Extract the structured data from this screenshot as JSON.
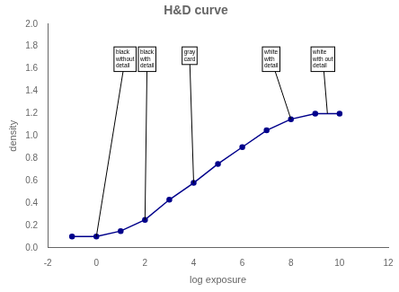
{
  "chart_data": {
    "type": "line",
    "title": "H&D curve",
    "xlabel": "log exposure",
    "ylabel": "density",
    "x": [
      -1,
      0,
      1,
      2,
      3,
      4,
      5,
      6,
      7,
      8,
      9,
      10
    ],
    "values": [
      0.1,
      0.1,
      0.15,
      0.25,
      0.43,
      0.58,
      0.75,
      0.9,
      1.05,
      1.15,
      1.2,
      1.2
    ],
    "color": "#00008B",
    "marker": "circle",
    "xlim": [
      -2,
      12
    ],
    "ylim": [
      0,
      2
    ],
    "xticks": [
      -2,
      0,
      2,
      4,
      6,
      8,
      10,
      12
    ],
    "yticks": [
      {
        "value": 0,
        "label": "0.0"
      },
      0.2,
      0.4,
      0.6,
      0.8,
      {
        "value": 1.0,
        "label": "1.0"
      },
      1.2,
      1.4,
      1.6,
      1.8,
      {
        "value": 2.0,
        "label": "2.0"
      }
    ],
    "grid": false,
    "annotations": [
      {
        "text": "black\nwithout\ndetail",
        "x": 0,
        "y": 0.1,
        "text_x": 0.8,
        "text_y": 1.78
      },
      {
        "text": "black\nwith\ndetail",
        "x": 2,
        "y": 0.25,
        "text_x": 1.8,
        "text_y": 1.78
      },
      {
        "text": "gray\ncard",
        "x": 4,
        "y": 0.58,
        "text_x": 3.6,
        "text_y": 1.78
      },
      {
        "text": "white\nwith\ndetail",
        "x": 8,
        "y": 1.15,
        "text_x": 6.9,
        "text_y": 1.78
      },
      {
        "text": "white\nwith out\ndetail",
        "x": 9.5,
        "y": 1.2,
        "text_x": 8.9,
        "text_y": 1.78
      }
    ]
  }
}
